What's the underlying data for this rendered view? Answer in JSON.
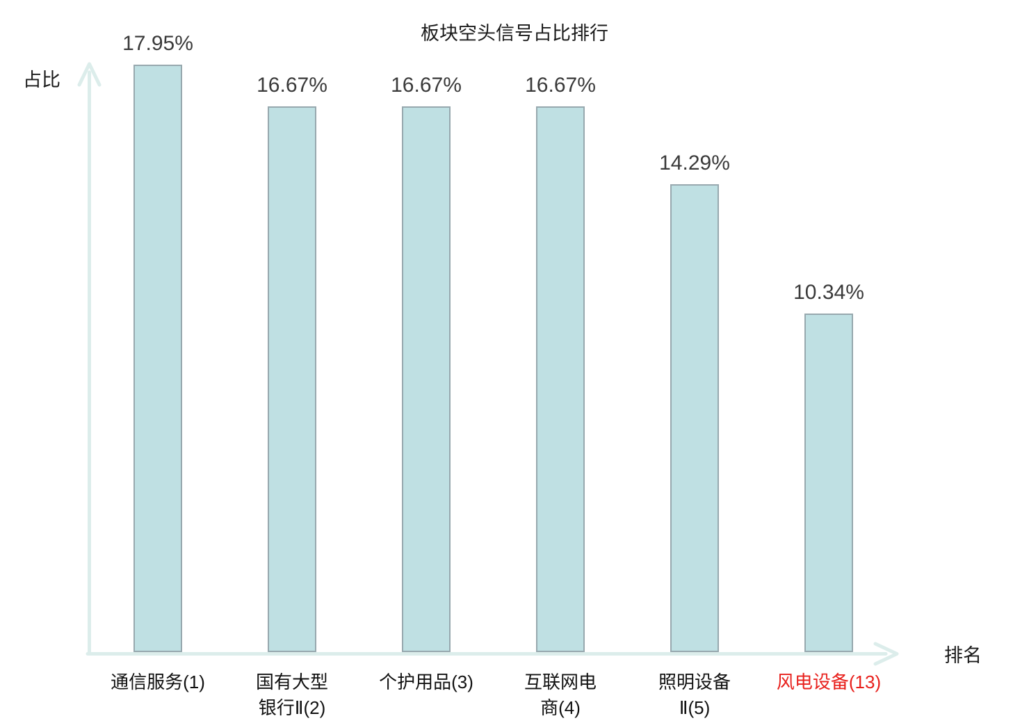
{
  "title": "板块空头信号占比排行",
  "colors": {
    "bar_fill": "#bfe0e3",
    "bar_border": "#97a8ae",
    "axis": "#dcedeb",
    "value_label": "#3a3a3a",
    "category_label": "#111111",
    "highlight": "#e8201c",
    "title": "#1a1a1a"
  },
  "chart_data": {
    "type": "bar",
    "title": "板块空头信号占比排行",
    "xlabel": "排名",
    "ylabel": "占比",
    "ylim": [
      0,
      18
    ],
    "grid": false,
    "legend": false,
    "categories": [
      "通信服务(1)",
      "国有大型银行Ⅱ(2)",
      "个护用品(3)",
      "互联网电商(4)",
      "照明设备Ⅱ(5)",
      "风电设备(13)"
    ],
    "category_lines": [
      [
        "通信服务(1)"
      ],
      [
        "国有大型",
        "银行Ⅱ(2)"
      ],
      [
        "个护用品(3)"
      ],
      [
        "互联网电",
        "商(4)"
      ],
      [
        "照明设备",
        "Ⅱ(5)"
      ],
      [
        "风电设备(13)"
      ]
    ],
    "values": [
      17.95,
      16.67,
      16.67,
      16.67,
      14.29,
      10.34
    ],
    "value_labels": [
      "17.95%",
      "16.67%",
      "16.67%",
      "16.67%",
      "14.29%",
      "10.34%"
    ],
    "highlighted_index": 5
  }
}
